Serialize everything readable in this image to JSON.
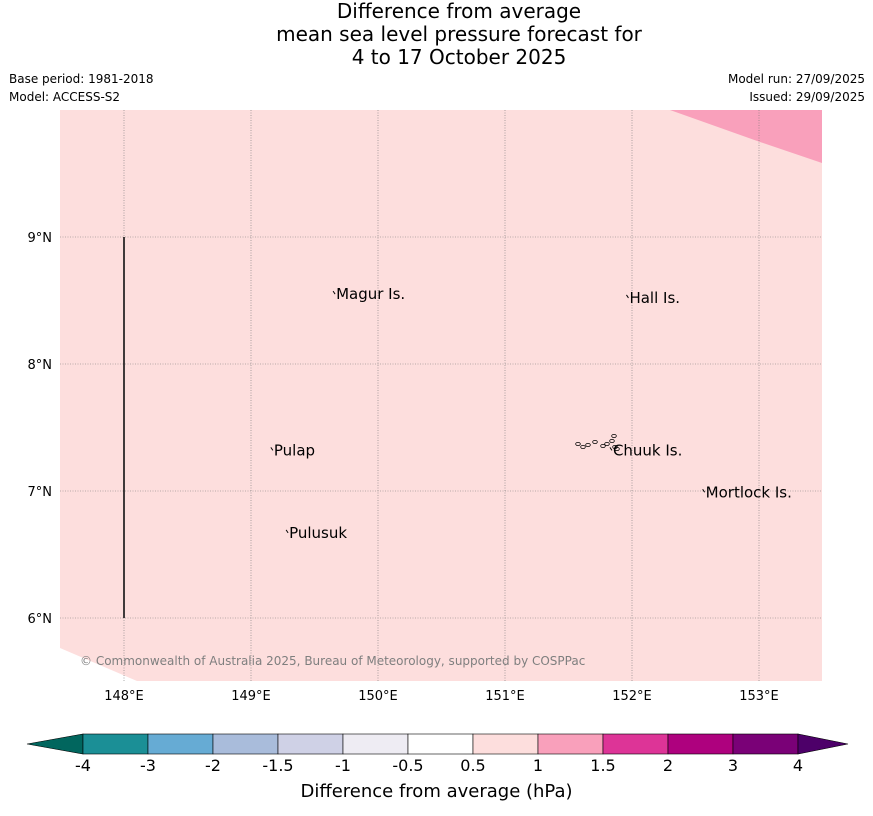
{
  "title": {
    "line1": "Difference from average",
    "line2": "mean sea level pressure forecast for",
    "line3": "4 to 17 October 2025"
  },
  "meta": {
    "base_period": "Base period: 1981-2018",
    "model": "Model: ACCESS-S2",
    "model_run": "Model run: 27/09/2025",
    "issued": "Issued: 29/09/2025"
  },
  "map": {
    "extent": {
      "lon": [
        147.5,
        153.5
      ],
      "lat": [
        5.5,
        10.0
      ]
    },
    "background_color": "#fddedd",
    "high_anomaly_color": "#f9a0bb",
    "lon_ticks": [
      {
        "value": 148,
        "label": "148°E"
      },
      {
        "value": 149,
        "label": "149°E"
      },
      {
        "value": 150,
        "label": "150°E"
      },
      {
        "value": 151,
        "label": "151°E"
      },
      {
        "value": 152,
        "label": "152°E"
      },
      {
        "value": 153,
        "label": "153°E"
      }
    ],
    "lat_ticks": [
      {
        "value": 9,
        "label": "9°N"
      },
      {
        "value": 8,
        "label": "8°N"
      },
      {
        "value": 7,
        "label": "7°N"
      },
      {
        "value": 6,
        "label": "6°N"
      }
    ],
    "places": [
      {
        "name": "Magur Is.",
        "lon": 149.67,
        "lat": 8.55
      },
      {
        "name": "Hall Is.",
        "lon": 151.98,
        "lat": 8.52
      },
      {
        "name": "Pulap",
        "lon": 149.18,
        "lat": 7.32
      },
      {
        "name": "Chuuk Is.",
        "lon": 151.85,
        "lat": 7.32
      },
      {
        "name": "Mortlock Is.",
        "lon": 152.58,
        "lat": 6.99
      },
      {
        "name": "Pulusuk",
        "lon": 149.3,
        "lat": 6.67
      }
    ],
    "boundary_line": {
      "lon": 148.0,
      "lat": [
        6.0,
        9.0
      ]
    },
    "copyright": "© Commonwealth of Australia 2025, Bureau of Meteorology, supported by COSPPac"
  },
  "legend": {
    "title": "Difference from average (hPa)",
    "bins": [
      {
        "label": "-4",
        "color": "#1b8f96"
      },
      {
        "label": "-3",
        "color": "#66abd4"
      },
      {
        "label": "-2",
        "color": "#a9bcdb"
      },
      {
        "label": "-1.5",
        "color": "#cfd1e6"
      },
      {
        "label": "-1",
        "color": "#eeecf3"
      },
      {
        "label": "-0.5",
        "color": "#ffffff"
      },
      {
        "label": "0.5",
        "color": "#fddedd"
      },
      {
        "label": "1",
        "color": "#f9a0bb"
      },
      {
        "label": "1.5",
        "color": "#dd3497"
      },
      {
        "label": "2",
        "color": "#ae017e"
      },
      {
        "label": "3",
        "color": "#7a0177"
      },
      {
        "label": "4",
        "color": ""
      }
    ],
    "under_color": "#01665e",
    "over_color": "#4d0069"
  }
}
